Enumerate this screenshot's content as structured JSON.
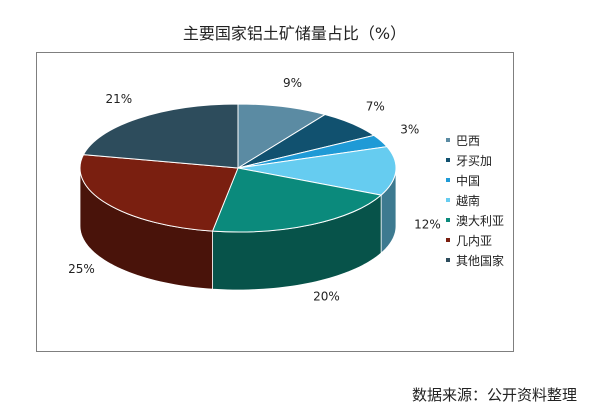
{
  "chart_data": {
    "type": "pie",
    "title": "主要国家铝土矿储量占比（%）",
    "categories": [
      "巴西",
      "牙买加",
      "中国",
      "越南",
      "澳大利亚",
      "几内亚",
      "其他国家"
    ],
    "values": [
      9,
      7,
      3,
      12,
      20,
      25,
      21
    ],
    "value_labels": [
      "9%",
      "7%",
      "3%",
      "12%",
      "20%",
      "25%",
      "21%"
    ],
    "colors": [
      "#5b8ba3",
      "#11516f",
      "#1f9ad6",
      "#66ccf0",
      "#0b8a7c",
      "#7a1f10",
      "#2d4c5c"
    ],
    "legend": "right",
    "style": "3d"
  },
  "source_note": "数据来源：公开资料整理"
}
